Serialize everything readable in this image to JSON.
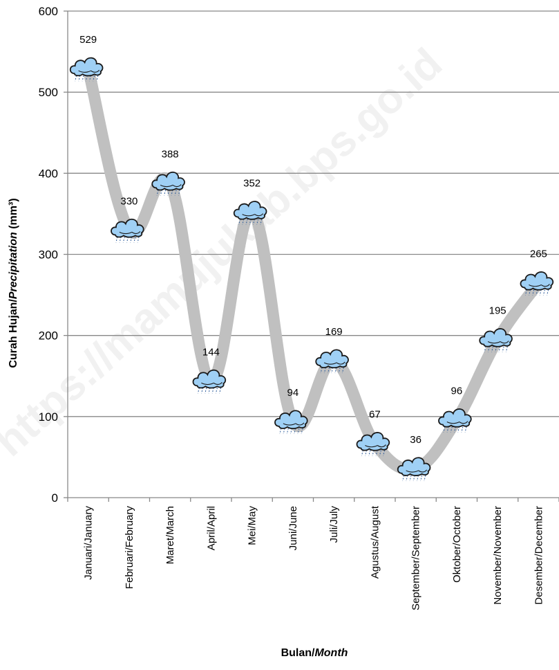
{
  "chart_data": {
    "type": "line",
    "categories": [
      "Januari/January",
      "Februari/February",
      "Maret/March",
      "April/April",
      "Mei/May",
      "Juni/June",
      "Juli/July",
      "Agustus/August",
      "September/September",
      "Oktober/October",
      "November/November",
      "Desember/December"
    ],
    "values": [
      529,
      330,
      388,
      144,
      352,
      94,
      169,
      67,
      36,
      96,
      195,
      265
    ],
    "data_labels": [
      "529",
      "330",
      "388",
      "144",
      "352",
      "94",
      "169",
      "67",
      "36",
      "96",
      "195",
      "265"
    ],
    "ylim": [
      0,
      600
    ],
    "yticks": [
      0,
      100,
      200,
      300,
      400,
      500,
      600
    ],
    "grid": true,
    "marker": "rain-cloud-icon",
    "ylabel_main": "Curah Hujan/",
    "ylabel_italic": "Precipitation",
    "ylabel_unit": " (mm³)",
    "xlabel_main": "Bulan/",
    "xlabel_italic": "Month",
    "colors": {
      "line": "#c0c0c0",
      "grid": "#888888",
      "axis": "#888888",
      "cloud_fill": "#9fd0f5",
      "cloud_stroke": "#1a1a1a",
      "rain": "#2a5a9a"
    }
  },
  "watermark": "https://mamujukab.bps.go.id"
}
